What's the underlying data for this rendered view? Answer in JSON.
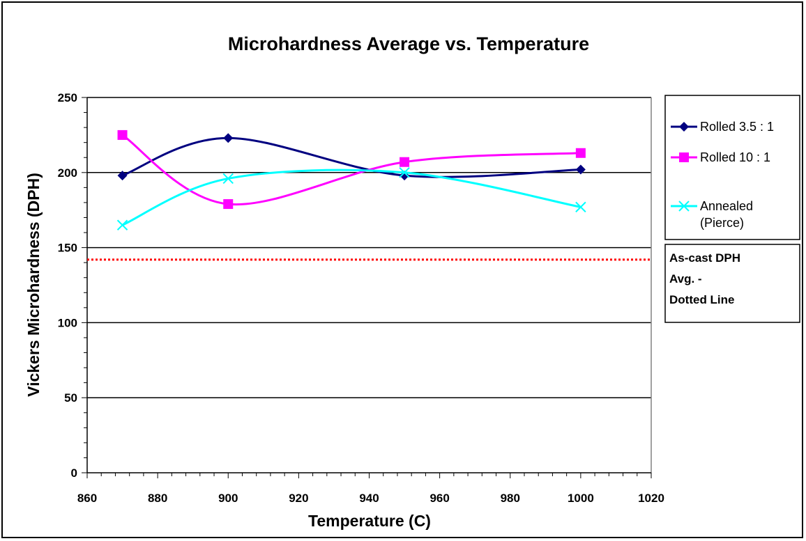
{
  "chart_data": {
    "type": "line",
    "title": "Microhardness Average vs. Temperature",
    "xlabel": "Temperature (C)",
    "ylabel": "Vickers Microhardness (DPH)",
    "xlim": [
      860,
      1020
    ],
    "ylim": [
      0,
      250
    ],
    "xticks": [
      860,
      880,
      900,
      920,
      940,
      960,
      980,
      1000,
      1020
    ],
    "yticks": [
      0,
      50,
      100,
      150,
      200,
      250
    ],
    "grid": "horizontal major gridlines",
    "legend_position": "right",
    "series": [
      {
        "name": "Rolled 3.5 : 1",
        "color": "#000080",
        "marker": "diamond",
        "x": [
          870,
          900,
          950,
          1000
        ],
        "y": [
          198,
          223,
          198,
          202
        ]
      },
      {
        "name": "Rolled 10 : 1",
        "color": "#ff00ff",
        "marker": "square",
        "x": [
          870,
          900,
          950,
          1000
        ],
        "y": [
          225,
          179,
          207,
          213
        ]
      },
      {
        "name": "Annealed (Pierce)",
        "color": "#00ffff",
        "marker": "x",
        "x": [
          870,
          900,
          950,
          1000
        ],
        "y": [
          165,
          196,
          200,
          177
        ]
      }
    ],
    "reference_line": {
      "label": "As-cast DPH Avg. - Dotted Line",
      "value": 142,
      "color": "#ff0000",
      "style": "dotted"
    },
    "legend_entries": [
      {
        "lines": [
          "Rolled 3.5 : 1"
        ]
      },
      {
        "lines": [
          "Rolled 10 : 1"
        ]
      },
      {
        "lines": [
          "Annealed",
          "(Pierce)"
        ]
      }
    ],
    "note_lines": [
      "As-cast DPH",
      "Avg.  -",
      "Dotted Line"
    ]
  }
}
